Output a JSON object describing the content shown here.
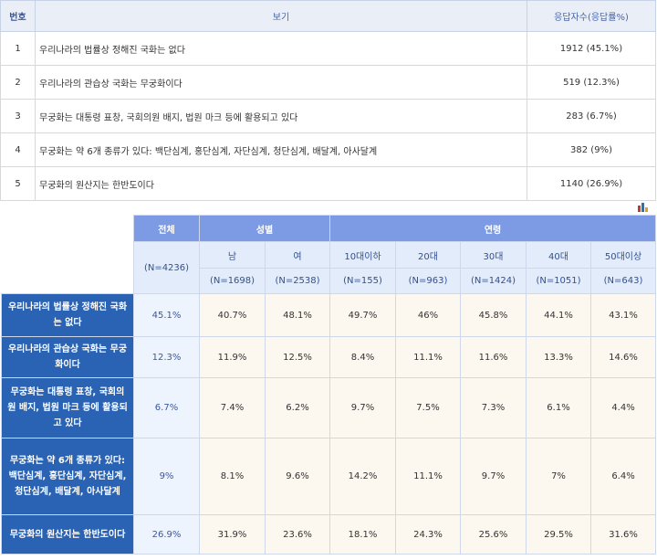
{
  "survey": {
    "headers": {
      "no": "번호",
      "option": "보기",
      "responses": "응답자수(응답률%)"
    },
    "rows": [
      {
        "no": "1",
        "option": "우리나라의 법률상 정해진 국화는 없다",
        "responses": "1912 (45.1%)"
      },
      {
        "no": "2",
        "option": "우리나라의 관습상 국화는 무궁화이다",
        "responses": "519 (12.3%)"
      },
      {
        "no": "3",
        "option": "무궁화는 대통령 표창, 국회의원 배지, 법원 마크 등에 활용되고 있다",
        "responses": "283 (6.7%)"
      },
      {
        "no": "4",
        "option": "무궁화는 약 6개 종류가 있다: 백단심계, 홍단심계, 자단심계, 청단심계, 배달계, 아사달계",
        "responses": "382 (9%)"
      },
      {
        "no": "5",
        "option": "무궁화의 원산지는 한반도이다",
        "responses": "1140 (26.9%)"
      }
    ]
  },
  "icon": {
    "name": "bar-chart-icon",
    "colors": [
      "#c0392b",
      "#2f6fb5",
      "#e0a020"
    ]
  },
  "crosstab": {
    "group_total": "전체",
    "group_gender": "성별",
    "group_age": "연령",
    "total_n": "(N=4236)",
    "columns": [
      {
        "label": "남",
        "n": "(N=1698)"
      },
      {
        "label": "여",
        "n": "(N=2538)"
      },
      {
        "label": "10대이하",
        "n": "(N=155)"
      },
      {
        "label": "20대",
        "n": "(N=963)"
      },
      {
        "label": "30대",
        "n": "(N=1424)"
      },
      {
        "label": "40대",
        "n": "(N=1051)"
      },
      {
        "label": "50대이상",
        "n": "(N=643)"
      }
    ],
    "rows": [
      {
        "label": "우리나라의 법률상 정해진 국화는 없다",
        "values": [
          "45.1%",
          "40.7%",
          "48.1%",
          "49.7%",
          "46%",
          "45.8%",
          "44.1%",
          "43.1%"
        ]
      },
      {
        "label": "우리나라의 관습상 국화는 무궁화이다",
        "values": [
          "12.3%",
          "11.9%",
          "12.5%",
          "8.4%",
          "11.1%",
          "11.6%",
          "13.3%",
          "14.6%"
        ]
      },
      {
        "label": "무궁화는 대통령 표창, 국회의원 배지, 법원 마크 등에 활용되고 있다",
        "values": [
          "6.7%",
          "7.4%",
          "6.2%",
          "9.7%",
          "7.5%",
          "7.3%",
          "6.1%",
          "4.4%"
        ]
      },
      {
        "label": "무궁화는 약 6개 종류가 있다: 백단심계, 홍단심계, 자단심계, 청단심계, 배달계, 아사달계",
        "values": [
          "9%",
          "8.1%",
          "9.6%",
          "14.2%",
          "11.1%",
          "9.7%",
          "7%",
          "6.4%"
        ]
      },
      {
        "label": "무궁화의 원산지는 한반도이다",
        "values": [
          "26.9%",
          "31.9%",
          "23.6%",
          "18.1%",
          "24.3%",
          "25.6%",
          "29.5%",
          "31.6%"
        ]
      }
    ]
  }
}
